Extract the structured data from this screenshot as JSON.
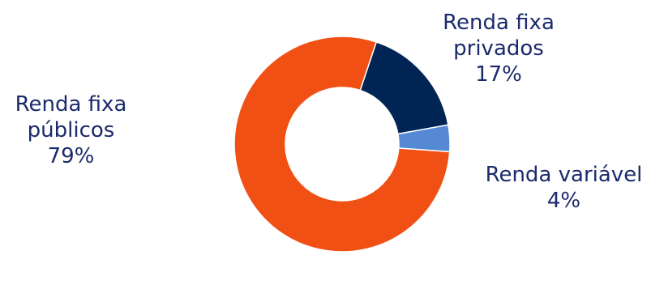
{
  "chart_data": {
    "type": "pie",
    "variant": "donut",
    "slices": [
      {
        "label_lines": [
          "Renda fixa",
          "públicos"
        ],
        "value": 79,
        "value_label": "79%",
        "color": "#f05014"
      },
      {
        "label_lines": [
          "Renda fixa",
          "privados"
        ],
        "value": 17,
        "value_label": "17%",
        "color": "#002555"
      },
      {
        "label_lines": [
          "Renda variável"
        ],
        "value": 4,
        "value_label": "4%",
        "color": "#5589d4"
      }
    ],
    "legend": "none"
  }
}
